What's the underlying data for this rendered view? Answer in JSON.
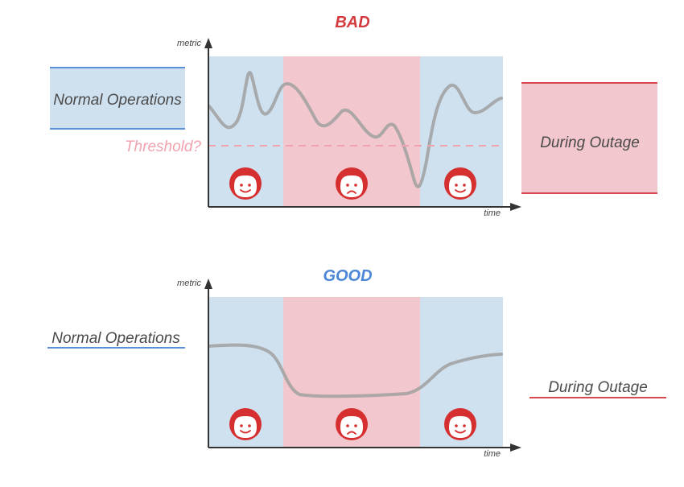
{
  "colors": {
    "normal_fill": "#cfe0ef",
    "outage_fill": "#f2c7cd",
    "normal_line": "#5b8fd6",
    "outage_line": "#d9484f",
    "bad_title": "#d43b3f",
    "good_title": "#4c86d6",
    "metric_curve": "#a0a0a0",
    "threshold": "#f0a3ae",
    "face": "#d62f2f",
    "axis": "#333333"
  },
  "panels": [
    {
      "title": "BAD",
      "y_axis_label": "metric",
      "x_axis_label": "time",
      "threshold_label": "Threshold?",
      "normal_label": "Normal Operations",
      "outage_label": "During Outage",
      "phases": [
        {
          "phase": "normal",
          "mood": "happy"
        },
        {
          "phase": "outage",
          "mood": "sad"
        },
        {
          "phase": "normal",
          "mood": "happy"
        }
      ]
    },
    {
      "title": "GOOD",
      "y_axis_label": "metric",
      "x_axis_label": "time",
      "normal_label": "Normal Operations",
      "outage_label": "During Outage",
      "phases": [
        {
          "phase": "normal",
          "mood": "happy"
        },
        {
          "phase": "outage",
          "mood": "sad"
        },
        {
          "phase": "normal",
          "mood": "happy"
        }
      ]
    }
  ],
  "icons": {
    "face_happy": "happy-face-icon",
    "face_sad": "sad-face-icon"
  }
}
